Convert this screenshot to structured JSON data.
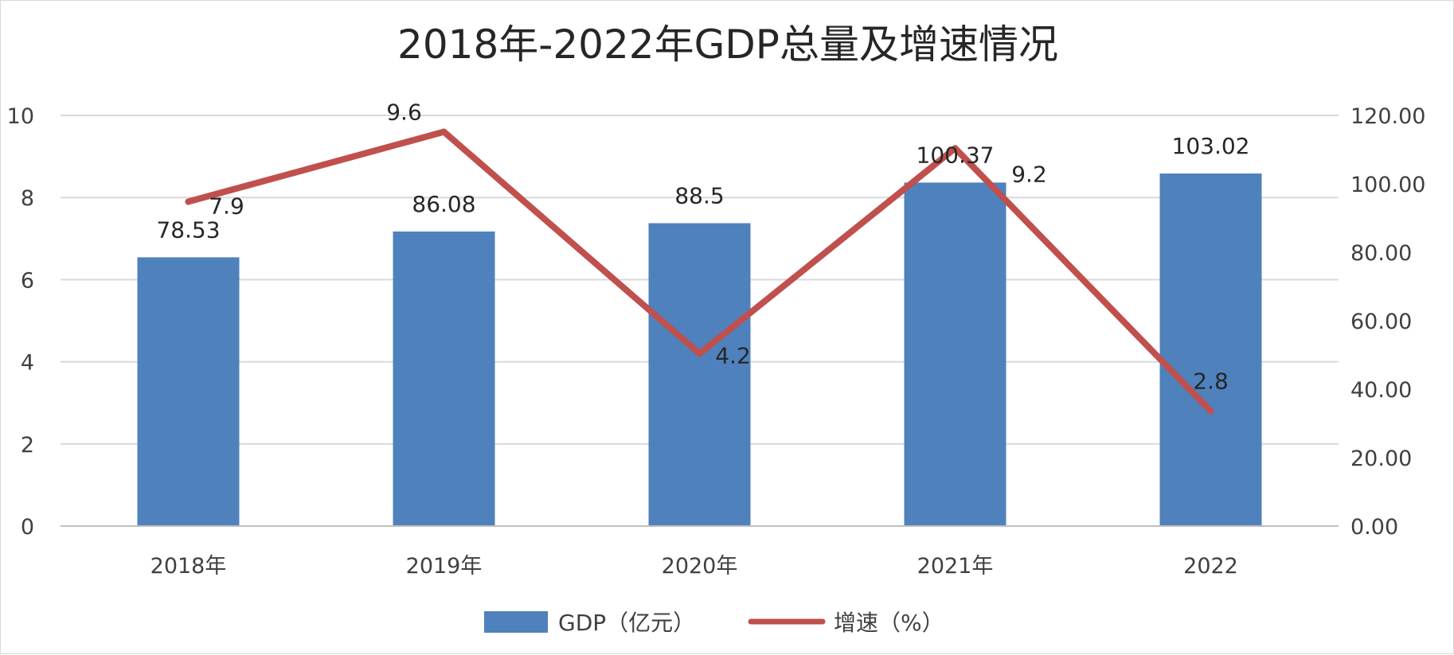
{
  "chart_data": {
    "type": "bar",
    "title": "2018年-2022年GDP总量及增速情况",
    "categories": [
      "2018年",
      "2019年",
      "2020年",
      "2021年",
      "2022"
    ],
    "series": [
      {
        "name": "GDP（亿元）",
        "type": "bar",
        "axis": "right",
        "values": [
          78.53,
          86.08,
          88.5,
          100.37,
          103.02
        ],
        "labels": [
          "78.53",
          "86.08",
          "88.5",
          "100.37",
          "103.02"
        ],
        "color": "#4f81bd"
      },
      {
        "name": "增速（%）",
        "type": "line",
        "axis": "left",
        "values": [
          7.9,
          9.6,
          4.2,
          9.2,
          2.8
        ],
        "labels": [
          "7.9",
          "9.6",
          "4.2",
          "9.2",
          "2.8"
        ],
        "color": "#c0504d"
      }
    ],
    "left_axis": {
      "min": 0,
      "max": 10,
      "ticks": [
        "0",
        "2",
        "4",
        "6",
        "8",
        "10"
      ]
    },
    "right_axis": {
      "min": 0,
      "max": 120,
      "ticks": [
        "0.00",
        "20.00",
        "40.00",
        "60.00",
        "80.00",
        "100.00",
        "120.00"
      ]
    },
    "grid": true,
    "legend_position": "bottom"
  }
}
